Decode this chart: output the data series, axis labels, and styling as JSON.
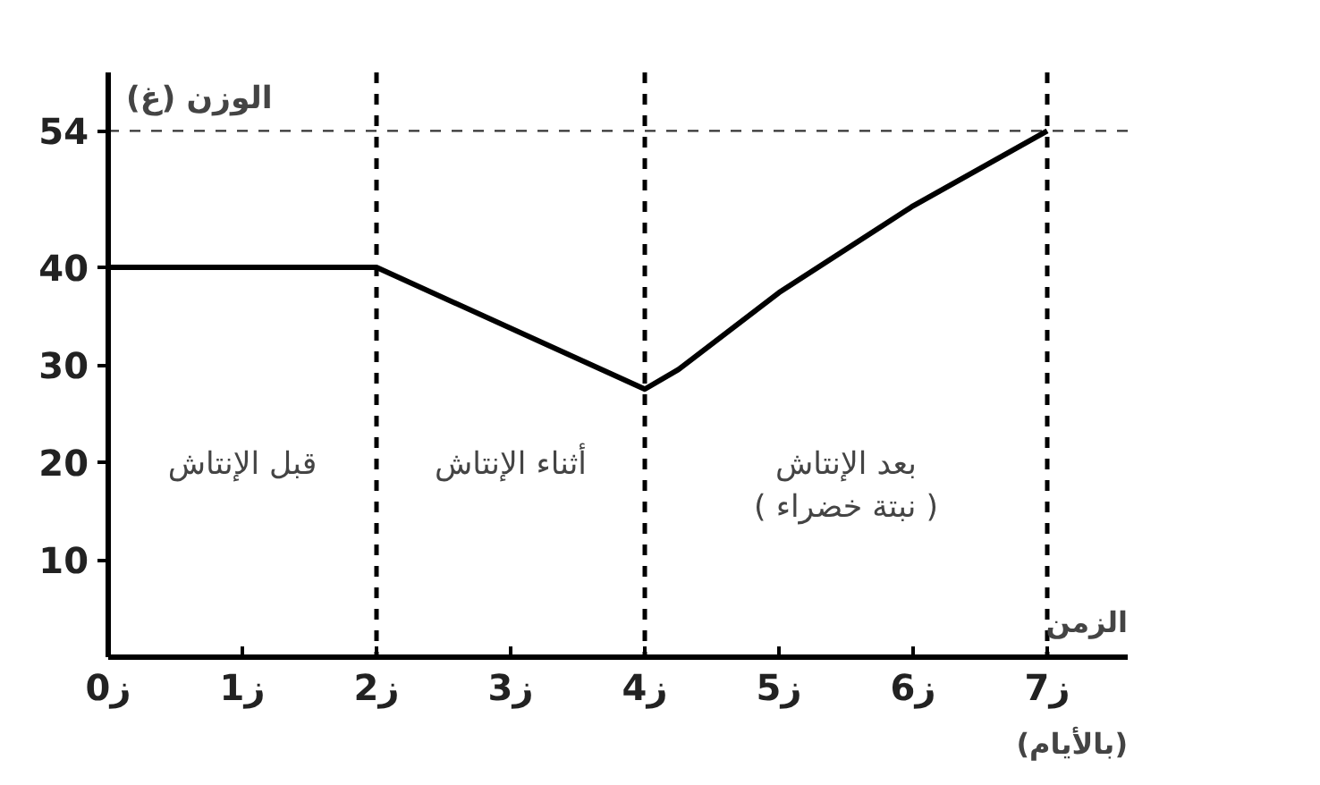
{
  "chart_data": {
    "type": "line",
    "xlabel": "الزمن",
    "ylabel": "الوزن (غ)",
    "x": [
      0,
      2,
      4,
      4.25,
      5,
      6,
      7
    ],
    "series": [
      {
        "color": "#000000",
        "values": [
          40,
          40,
          27.5,
          29.5,
          37.4,
          46.3,
          54
        ]
      }
    ],
    "xlim": [
      0,
      7.6
    ],
    "ylim": [
      0,
      60
    ],
    "xticks": [
      {
        "value": 0,
        "label": "0ز"
      },
      {
        "value": 1,
        "label": "1ز"
      },
      {
        "value": 2,
        "label": "2ز"
      },
      {
        "value": 3,
        "label": "3ز"
      },
      {
        "value": 4,
        "label": "4ز"
      },
      {
        "value": 5,
        "label": "5ز"
      },
      {
        "value": 6,
        "label": "6ز"
      },
      {
        "value": 7,
        "label": "7ز"
      }
    ],
    "yticks": [
      10,
      20,
      30,
      40,
      54
    ],
    "ref_lines": [
      {
        "axis": "y",
        "value": 54,
        "line_style": "dashed"
      },
      {
        "axis": "x",
        "value": 2,
        "line_style": "dashed"
      },
      {
        "axis": "x",
        "value": 4,
        "line_style": "dashed"
      },
      {
        "axis": "x",
        "value": 7,
        "line_style": "dashed"
      }
    ],
    "annotations": [
      "قبل الإنتاش",
      "أثناء الإنتاش",
      "بعد الإنتاش\n( نبتة خضراء )",
      "(بالأيام)"
    ],
    "grid": false,
    "marker": "none",
    "line_style": "solid"
  }
}
